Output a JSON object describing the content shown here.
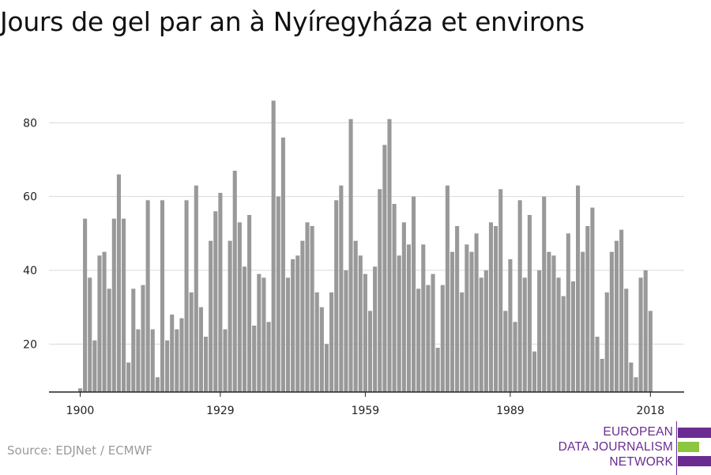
{
  "title": "Jours de gel par an à Nyíregyháza et environs",
  "source": "Source: EDJNet / ECMWF",
  "logo": {
    "lines": [
      "EUROPEAN",
      "DATA JOURNALISM",
      "NETWORK"
    ],
    "colors": {
      "purple": "#6a2c91",
      "green": "#8dc63f"
    }
  },
  "colors": {
    "bar": "#999999",
    "grid": "#d9d9d9",
    "axis": "#222222"
  },
  "chart_data": {
    "type": "bar",
    "title": "Jours de gel par an à Nyíregyháza et environs",
    "xlabel": "",
    "ylabel": "",
    "ylim": [
      7,
      88
    ],
    "yticks": [
      20,
      40,
      60,
      80
    ],
    "xticks": [
      1900,
      1929,
      1959,
      1989,
      2018
    ],
    "grid": true,
    "x": [
      1900,
      1901,
      1902,
      1903,
      1904,
      1905,
      1906,
      1907,
      1908,
      1909,
      1910,
      1911,
      1912,
      1913,
      1914,
      1915,
      1916,
      1917,
      1918,
      1919,
      1920,
      1921,
      1922,
      1923,
      1924,
      1925,
      1926,
      1927,
      1928,
      1929,
      1930,
      1931,
      1932,
      1933,
      1934,
      1935,
      1936,
      1937,
      1938,
      1939,
      1940,
      1941,
      1942,
      1943,
      1944,
      1945,
      1946,
      1947,
      1948,
      1949,
      1950,
      1951,
      1952,
      1953,
      1954,
      1955,
      1956,
      1957,
      1958,
      1959,
      1960,
      1961,
      1962,
      1963,
      1964,
      1965,
      1966,
      1967,
      1968,
      1969,
      1970,
      1971,
      1972,
      1973,
      1974,
      1975,
      1976,
      1977,
      1978,
      1979,
      1980,
      1981,
      1982,
      1983,
      1984,
      1985,
      1986,
      1987,
      1988,
      1989,
      1990,
      1991,
      1992,
      1993,
      1994,
      1995,
      1996,
      1997,
      1998,
      1999,
      2000,
      2001,
      2002,
      2003,
      2004,
      2005,
      2006,
      2007,
      2008,
      2009,
      2010,
      2011,
      2012,
      2013,
      2014,
      2015,
      2016,
      2017,
      2018
    ],
    "series": [
      {
        "values": [
          8,
          54,
          38,
          21,
          44,
          45,
          35,
          54,
          66,
          54,
          15,
          35,
          24,
          36,
          59,
          24,
          11,
          59,
          21,
          28,
          24,
          27,
          59,
          34,
          63,
          30,
          22,
          48,
          56,
          61,
          24,
          48,
          67,
          53,
          41,
          55,
          25,
          39,
          38,
          26,
          86,
          60,
          76,
          38,
          43,
          44,
          48,
          53,
          52,
          34,
          30,
          20,
          34,
          59,
          63,
          40,
          81,
          48,
          44,
          39,
          29,
          41,
          62,
          74,
          81,
          58,
          44,
          53,
          47,
          60,
          35,
          47,
          36,
          39,
          19,
          36,
          63,
          45,
          52,
          34,
          47,
          45,
          50,
          38,
          40,
          53,
          52,
          62,
          29,
          43,
          26,
          59,
          38,
          55,
          18,
          40,
          60,
          45,
          44,
          38,
          33,
          50,
          37,
          63,
          45,
          52,
          57,
          22,
          16,
          34,
          45,
          48,
          51,
          35,
          15,
          11,
          38,
          40,
          29
        ]
      }
    ]
  }
}
